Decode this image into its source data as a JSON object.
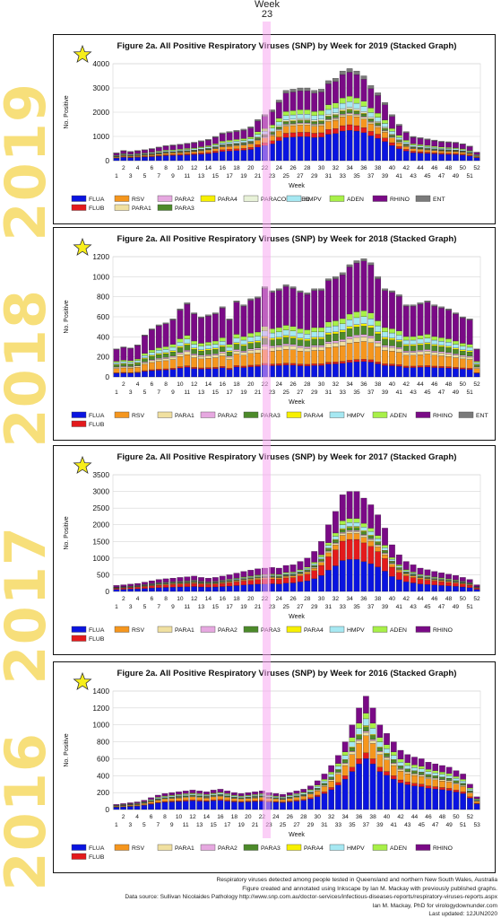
{
  "header": {
    "week_word": "Week",
    "week_number": "23"
  },
  "colors": {
    "FLUA": "#0a14e0",
    "FLUB": "#e31a1c",
    "RSV": "#f5961e",
    "PARA1": "#f0e0a0",
    "PARA2": "#e6a8e0",
    "PARA3": "#4c8a2a",
    "PARA4": "#f7f000",
    "PARACOMBINED": "#e8f2d8",
    "HMPV": "#a6e8f2",
    "ADEN": "#a8f048",
    "RHINO": "#7a0a86",
    "ENT": "#7a7a7a"
  },
  "footer": {
    "line1": "Respiratory viruses detected among people tested in Queensland and northern New South Wales, Australia",
    "line2": "Figure created and annotated using Inkscape by Ian M. Mackay with previously published graphs.",
    "line3": "Data source: Sullivan Nicolaides Pathology http://www.snp.com.au/doctor-services/infectious-diseases-reports/respiratory-viruses-reports.aspx",
    "line4": "Ian M. Mackay, PhD for virologydownunder.com",
    "line5": "Last updated: 12JUN2020"
  },
  "chart_data": [
    {
      "type": "bar",
      "stacked": true,
      "year": "2019",
      "title": "Figure 2a. All Positive Respiratory Viruses (SNP) by Week for 2019 (Stacked Graph)",
      "xlabel": "Week",
      "ylabel": "No. Positive",
      "ylim": [
        0,
        4000
      ],
      "yticks": [
        0,
        1000,
        2000,
        3000,
        4000
      ],
      "tick_top": [
        "2",
        "4",
        "6",
        "8",
        "10",
        "12",
        "14",
        "16",
        "18",
        "20",
        "22",
        "24",
        "26",
        "28",
        "30",
        "32",
        "34",
        "36",
        "38",
        "40",
        "42",
        "44",
        "46",
        "48",
        "50",
        "52"
      ],
      "tick_bottom": [
        "1",
        "3",
        "5",
        "7",
        "9",
        "11",
        "13",
        "15",
        "17",
        "19",
        "21",
        "23",
        "25",
        "27",
        "29",
        "31",
        "33",
        "35",
        "37",
        "39",
        "41",
        "43",
        "45",
        "47",
        "49",
        "51"
      ],
      "n_weeks": 52,
      "legend": [
        [
          "FLUA",
          "RSV",
          "PARA2",
          "PARA4",
          "PARACOMBINED",
          "HMPV",
          "ADEN",
          "RHINO",
          "ENT"
        ],
        [
          "FLUB",
          "PARA1",
          "PARA3"
        ]
      ],
      "totals": [
        320,
        420,
        380,
        420,
        450,
        500,
        560,
        620,
        650,
        680,
        720,
        760,
        820,
        880,
        1000,
        1150,
        1200,
        1250,
        1300,
        1400,
        1700,
        1900,
        2100,
        2500,
        2900,
        2950,
        3000,
        3000,
        2900,
        2950,
        3300,
        3400,
        3700,
        3800,
        3700,
        3500,
        3100,
        2800,
        2400,
        1900,
        1500,
        1200,
        1000,
        950,
        900,
        850,
        800,
        780,
        760,
        700,
        600,
        350
      ],
      "fractions": {
        "FLUA": 0.33,
        "FLUB": 0.06,
        "RSV": 0.1,
        "PARA1": 0.02,
        "PARA2": 0.01,
        "PARA3": 0.03,
        "PARA4": 0.01,
        "PARACOMBINED": 0.02,
        "HMPV": 0.06,
        "ADEN": 0.06,
        "RHINO": 0.26,
        "ENT": 0.04
      }
    },
    {
      "type": "bar",
      "stacked": true,
      "year": "2018",
      "title": "Figure 2a. All Positive Respiratory Viruses (SNP) by Week for 2018 (Stacked Graph)",
      "xlabel": "Week",
      "ylabel": "No. Positive",
      "ylim": [
        0,
        1200
      ],
      "yticks": [
        0,
        200,
        400,
        600,
        800,
        1000,
        1200
      ],
      "tick_top": [
        "2",
        "4",
        "6",
        "8",
        "10",
        "12",
        "14",
        "16",
        "18",
        "20",
        "22",
        "24",
        "26",
        "28",
        "30",
        "32",
        "34",
        "36",
        "38",
        "40",
        "42",
        "44",
        "46",
        "48",
        "50",
        "52"
      ],
      "tick_bottom": [
        "1",
        "3",
        "5",
        "7",
        "9",
        "11",
        "13",
        "15",
        "17",
        "19",
        "21",
        "23",
        "25",
        "27",
        "29",
        "31",
        "33",
        "35",
        "37",
        "39",
        "41",
        "43",
        "45",
        "47",
        "49",
        "51"
      ],
      "n_weeks": 52,
      "legend": [
        [
          "FLUA",
          "RSV",
          "PARA1",
          "PARA2",
          "PARA3",
          "PARA4",
          "HMPV",
          "ADEN",
          "RHINO",
          "ENT"
        ],
        [
          "FLUB"
        ]
      ],
      "totals": [
        280,
        300,
        290,
        320,
        420,
        480,
        520,
        540,
        580,
        680,
        740,
        640,
        600,
        620,
        640,
        700,
        580,
        760,
        720,
        780,
        800,
        900,
        860,
        880,
        920,
        900,
        860,
        840,
        880,
        880,
        980,
        1000,
        1040,
        1120,
        1160,
        1180,
        1140,
        1000,
        880,
        860,
        820,
        720,
        720,
        740,
        760,
        720,
        700,
        680,
        640,
        600,
        580,
        280
      ],
      "fractions": {
        "FLUA": 0.13,
        "FLUB": 0.02,
        "RSV": 0.15,
        "PARA1": 0.04,
        "PARA2": 0.02,
        "PARA3": 0.07,
        "PARA4": 0.02,
        "HMPV": 0.06,
        "ADEN": 0.05,
        "RHINO": 0.42,
        "ENT": 0.02
      }
    },
    {
      "type": "bar",
      "stacked": true,
      "year": "2017",
      "title": "Figure 2a. All Positive Respiratory Viruses (SNP) by Week for 2017 (Stacked Graph)",
      "xlabel": "Week",
      "ylabel": "No. Positive",
      "ylim": [
        0,
        3500
      ],
      "yticks": [
        0,
        500,
        1000,
        1500,
        2000,
        2500,
        3000,
        3500
      ],
      "tick_top": [
        "2",
        "4",
        "6",
        "8",
        "10",
        "12",
        "14",
        "16",
        "18",
        "20",
        "22",
        "24",
        "26",
        "28",
        "30",
        "32",
        "34",
        "36",
        "38",
        "40",
        "42",
        "44",
        "46",
        "48",
        "50",
        "52"
      ],
      "tick_bottom": [
        "1",
        "3",
        "5",
        "7",
        "9",
        "11",
        "13",
        "15",
        "17",
        "19",
        "21",
        "23",
        "25",
        "27",
        "29",
        "31",
        "33",
        "35",
        "37",
        "39",
        "41",
        "43",
        "45",
        "47",
        "49",
        "51"
      ],
      "n_weeks": 52,
      "legend": [
        [
          "FLUA",
          "RSV",
          "PARA1",
          "PARA2",
          "PARA3",
          "PARA4",
          "HMPV",
          "ADEN",
          "RHINO"
        ],
        [
          "FLUB"
        ]
      ],
      "totals": [
        180,
        200,
        220,
        240,
        280,
        320,
        360,
        380,
        400,
        420,
        440,
        460,
        420,
        400,
        420,
        460,
        500,
        550,
        600,
        640,
        680,
        700,
        720,
        700,
        780,
        800,
        900,
        1000,
        1200,
        1500,
        2000,
        2400,
        2900,
        3000,
        3000,
        2800,
        2600,
        2300,
        1900,
        1400,
        1100,
        900,
        800,
        700,
        650,
        600,
        560,
        520,
        480,
        420,
        360,
        200
      ],
      "fractions": {
        "FLUA": 0.32,
        "FLUB": 0.2,
        "RSV": 0.06,
        "PARA1": 0.02,
        "PARA2": 0.01,
        "PARA3": 0.03,
        "PARA4": 0.01,
        "HMPV": 0.04,
        "ADEN": 0.04,
        "RHINO": 0.27
      }
    },
    {
      "type": "bar",
      "stacked": true,
      "year": "2016",
      "title": "Figure 2a. All Positive Respiratory Viruses (SNP) by Week for 2016 (Stacked Graph)",
      "xlabel": "Week",
      "ylabel": "No. Positive",
      "ylim": [
        0,
        1400
      ],
      "yticks": [
        0,
        200,
        400,
        600,
        800,
        1000,
        1200,
        1400
      ],
      "tick_top": [
        "2",
        "4",
        "6",
        "8",
        "10",
        "12",
        "14",
        "16",
        "18",
        "20",
        "22",
        "24",
        "26",
        "28",
        "30",
        "32",
        "34",
        "36",
        "38",
        "40",
        "42",
        "44",
        "46",
        "48",
        "50",
        "52"
      ],
      "tick_bottom": [
        "1",
        "3",
        "5",
        "7",
        "9",
        "11",
        "13",
        "15",
        "17",
        "19",
        "21",
        "23",
        "25",
        "27",
        "29",
        "31",
        "33",
        "35",
        "37",
        "39",
        "41",
        "43",
        "45",
        "47",
        "49",
        "51",
        "53"
      ],
      "n_weeks": 53,
      "legend": [
        [
          "FLUA",
          "RSV",
          "PARA1",
          "PARA2",
          "PARA3",
          "PARA4",
          "HMPV",
          "ADEN",
          "RHINO"
        ],
        [
          "FLUB"
        ]
      ],
      "totals": [
        60,
        70,
        80,
        90,
        110,
        140,
        170,
        190,
        200,
        210,
        220,
        230,
        220,
        210,
        230,
        240,
        220,
        200,
        190,
        200,
        210,
        220,
        200,
        190,
        180,
        200,
        220,
        240,
        280,
        340,
        420,
        520,
        640,
        800,
        1000,
        1200,
        1340,
        1200,
        1000,
        900,
        800,
        700,
        650,
        620,
        600,
        560,
        540,
        520,
        500,
        460,
        420,
        300,
        150
      ],
      "fractions": {
        "FLUA": 0.45,
        "FLUB": 0.05,
        "RSV": 0.15,
        "PARA1": 0.03,
        "PARA2": 0.01,
        "PARA3": 0.04,
        "PARA4": 0.01,
        "HMPV": 0.06,
        "ADEN": 0.05,
        "RHINO": 0.15
      }
    }
  ]
}
